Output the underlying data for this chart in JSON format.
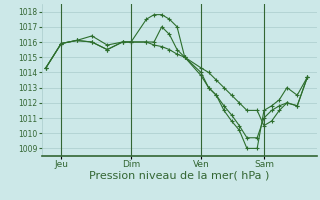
{
  "background_color": "#cce8e8",
  "grid_color": "#aacccc",
  "line_color": "#2d6e2d",
  "marker_color": "#2d6e2d",
  "ylim": [
    1008.5,
    1018.5
  ],
  "yticks": [
    1009,
    1010,
    1011,
    1012,
    1013,
    1014,
    1015,
    1016,
    1017,
    1018
  ],
  "xlabel": "Pression niveau de la mer( hPa )",
  "xlabel_fontsize": 8,
  "day_labels": [
    "Jeu",
    "Dim",
    "Ven",
    "Sam"
  ],
  "day_positions": [
    18,
    100,
    182,
    256
  ],
  "vline_positions": [
    18,
    100,
    182,
    256
  ],
  "vline_color": "#336633",
  "series": [
    {
      "x": [
        0,
        18,
        36,
        54,
        72,
        90,
        100,
        118,
        127,
        136,
        145,
        154,
        163,
        182,
        191,
        200,
        209,
        218,
        227,
        236,
        248,
        256,
        265,
        274,
        283,
        295,
        307
      ],
      "y": [
        1014.3,
        1015.9,
        1016.1,
        1016.4,
        1015.8,
        1016.0,
        1016.0,
        1017.5,
        1017.8,
        1017.8,
        1017.5,
        1017.0,
        1015.0,
        1014.0,
        1013.0,
        1012.5,
        1011.5,
        1010.8,
        1010.2,
        1009.0,
        1009.0,
        1011.5,
        1011.8,
        1012.2,
        1013.0,
        1012.5,
        1013.7
      ]
    },
    {
      "x": [
        0,
        18,
        36,
        54,
        72,
        90,
        100,
        118,
        127,
        136,
        145,
        154,
        163,
        182,
        191,
        200,
        209,
        218,
        227,
        236,
        248,
        256,
        265,
        274,
        283,
        295,
        307
      ],
      "y": [
        1014.3,
        1015.9,
        1016.1,
        1016.0,
        1015.5,
        1016.0,
        1016.0,
        1016.0,
        1016.0,
        1017.0,
        1016.5,
        1015.5,
        1015.0,
        1013.8,
        1013.0,
        1012.5,
        1011.8,
        1011.2,
        1010.5,
        1009.7,
        1009.7,
        1011.0,
        1011.5,
        1011.8,
        1012.0,
        1011.8,
        1013.7
      ]
    },
    {
      "x": [
        0,
        18,
        36,
        54,
        72,
        90,
        100,
        118,
        127,
        136,
        145,
        154,
        163,
        182,
        191,
        200,
        209,
        218,
        227,
        236,
        248,
        256,
        265,
        274,
        283,
        295,
        307
      ],
      "y": [
        1014.3,
        1015.9,
        1016.1,
        1016.0,
        1015.5,
        1016.0,
        1016.0,
        1016.0,
        1015.8,
        1015.7,
        1015.5,
        1015.2,
        1015.0,
        1014.3,
        1014.0,
        1013.5,
        1013.0,
        1012.5,
        1012.0,
        1011.5,
        1011.5,
        1010.5,
        1010.8,
        1011.5,
        1012.0,
        1011.8,
        1013.7
      ]
    }
  ],
  "xlim": [
    -5,
    318
  ],
  "figsize": [
    3.2,
    2.0
  ],
  "dpi": 100
}
